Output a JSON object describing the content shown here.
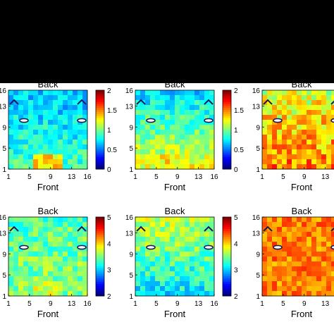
{
  "chart_data": [
    {
      "type": "heatmap",
      "title_top": "Back",
      "title_bottom": "Front",
      "x_ticks": [
        "1",
        "5",
        "9",
        "13",
        "16"
      ],
      "y_ticks": [
        "1",
        "5",
        "9",
        "13",
        "16"
      ],
      "colorbar": {
        "min": 0,
        "max": 2,
        "ticks": [
          "0",
          "0.5",
          "1",
          "1.5",
          "2"
        ]
      },
      "panels": [
        {
          "id": "r1c1",
          "mean": 0.75,
          "gradient": 0.25,
          "rough": 0.18,
          "hotspot_front": 0.45
        },
        {
          "id": "r1c2",
          "mean": 0.95,
          "gradient": 0.55,
          "rough": 0.18,
          "hotspot_front": 0.1
        },
        {
          "id": "r1c3",
          "mean": 1.35,
          "gradient": 0.35,
          "rough": 0.25,
          "hotspot_front": 0.0
        }
      ]
    },
    {
      "type": "heatmap",
      "title_top": "Back",
      "title_bottom": "Front",
      "x_ticks": [
        "1",
        "5",
        "9",
        "13",
        "16"
      ],
      "y_ticks": [
        "1",
        "5",
        "9",
        "13",
        "16"
      ],
      "colorbar": {
        "min": 2,
        "max": 5,
        "ticks": [
          "2",
          "3",
          "4",
          "5"
        ]
      },
      "panels": [
        {
          "id": "r2c1",
          "mean": 3.45,
          "gradient": 0.15,
          "rough": 0.3,
          "hotspot_front": 0.2
        },
        {
          "id": "r2c2",
          "mean": 3.4,
          "gradient": -0.6,
          "rough": 0.3,
          "hotspot_front": 0.0
        },
        {
          "id": "r2c3",
          "mean": 4.25,
          "gradient": 0.0,
          "rough": 0.25,
          "hotspot_front": 0.0
        }
      ]
    }
  ]
}
